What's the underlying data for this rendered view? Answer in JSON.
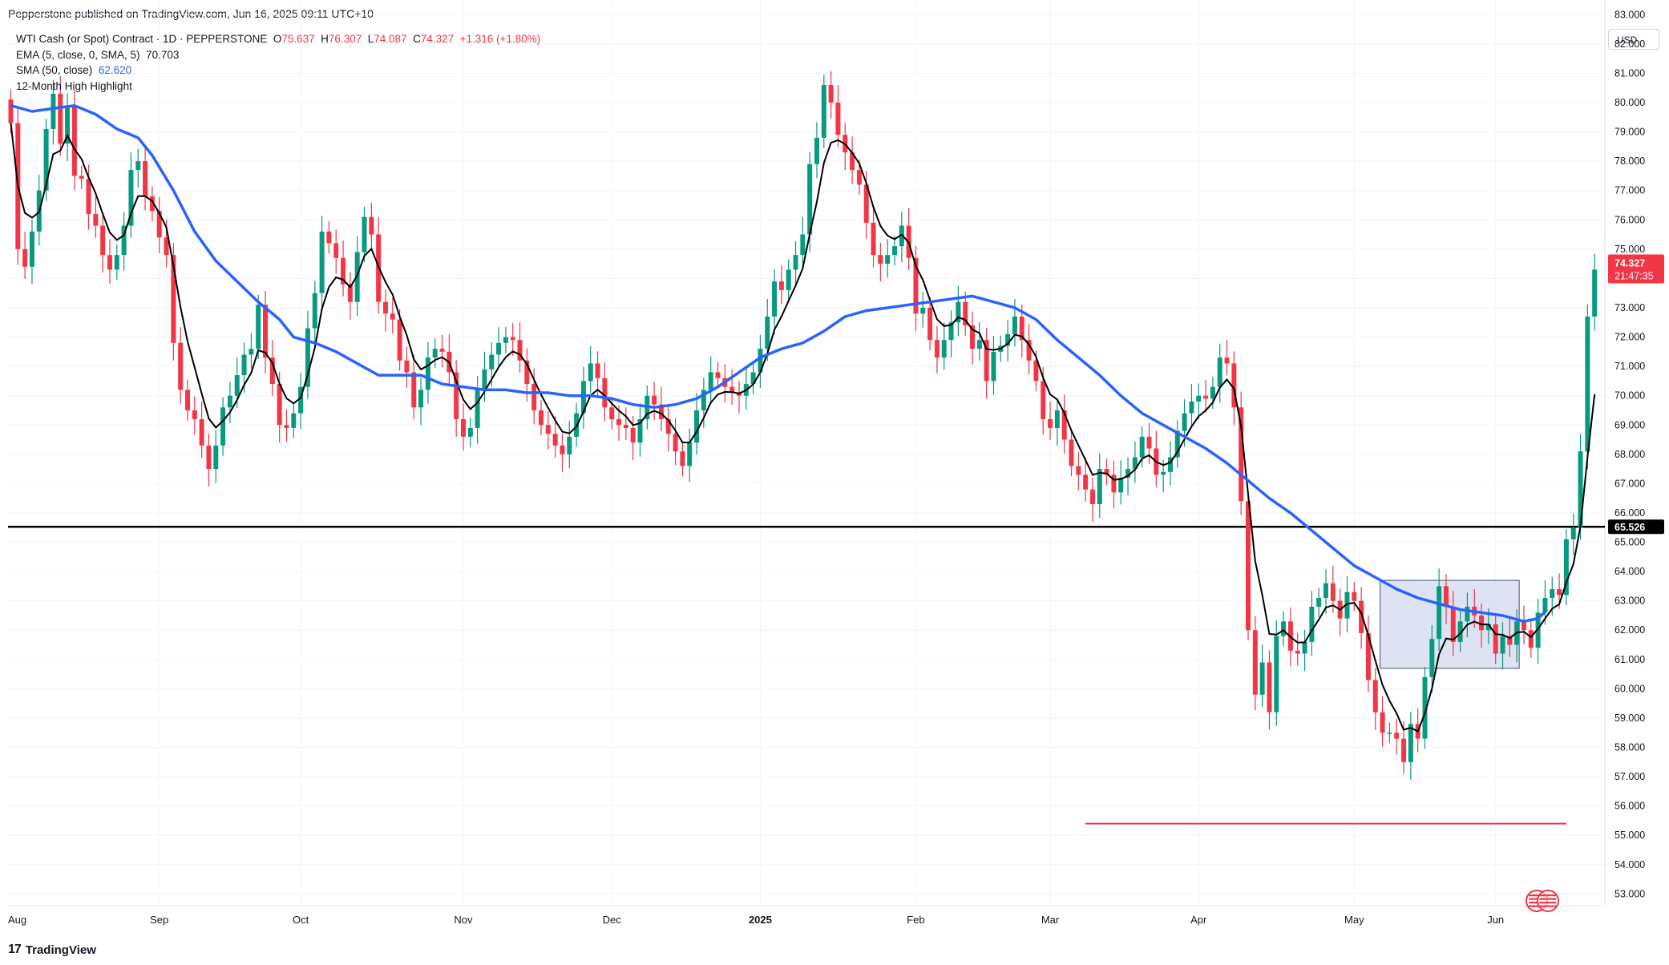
{
  "header": {
    "published": "Pepperstone published on TradingView.com, Jun 16, 2025 09:11 UTC+10"
  },
  "legend": {
    "symbol": "WTI Cash (or Spot) Contract · 1D · PEPPERSTONE",
    "o_label": "O",
    "o": "75.637",
    "h_label": "H",
    "h": "76.307",
    "l_label": "L",
    "l": "74.087",
    "c_label": "C",
    "c": "74.327",
    "change": "+1.316 (+1.80%)",
    "ema_label": "EMA (5, close, 0, SMA, 5)",
    "ema_value": "70.703",
    "sma_label": "SMA (50, close)",
    "sma_value": "62.620",
    "highlight_label": "12-Month High Highlight"
  },
  "currency": "USD",
  "footer": {
    "logo": "17",
    "brand": "TradingView"
  },
  "colors": {
    "up": "#089981",
    "down": "#f23645",
    "ema": "#000000",
    "sma": "#2962ff",
    "support": "#000000",
    "low_line": "#f23645",
    "box_fill": "#d1d9ee",
    "box_border": "#5b6b96"
  },
  "chart_data": {
    "type": "candlestick",
    "symbol": "WTI Cash (or Spot) Contract",
    "timeframe": "1D",
    "ylim": [
      52.6,
      83.5
    ],
    "y_ticks": [
      "53.000",
      "54.000",
      "55.000",
      "56.000",
      "57.000",
      "58.000",
      "59.000",
      "60.000",
      "61.000",
      "62.000",
      "63.000",
      "64.000",
      "65.000",
      "66.000",
      "67.000",
      "68.000",
      "69.000",
      "70.000",
      "71.000",
      "72.000",
      "73.000",
      "74.000",
      "75.000",
      "76.000",
      "77.000",
      "78.000",
      "79.000",
      "80.000",
      "81.000",
      "82.000",
      "83.000"
    ],
    "x_ticks": [
      {
        "label": "Aug",
        "index": -1
      },
      {
        "label": "Sep",
        "index": 21
      },
      {
        "label": "Oct",
        "index": 41
      },
      {
        "label": "Nov",
        "index": 64
      },
      {
        "label": "Dec",
        "index": 85
      },
      {
        "label": "2025",
        "index": 106,
        "bold": true
      },
      {
        "label": "Feb",
        "index": 128
      },
      {
        "label": "Mar",
        "index": 147
      },
      {
        "label": "Apr",
        "index": 168
      },
      {
        "label": "May",
        "index": 190
      },
      {
        "label": "Jun",
        "index": 210
      }
    ],
    "close": [
      79.3,
      75.0,
      74.4,
      75.6,
      77.0,
      79.1,
      80.3,
      78.6,
      79.9,
      77.5,
      77.4,
      76.2,
      75.8,
      74.8,
      74.3,
      74.8,
      75.8,
      77.7,
      78.0,
      76.8,
      76.3,
      75.4,
      74.8,
      71.8,
      70.2,
      69.5,
      69.2,
      68.3,
      67.5,
      68.3,
      69.6,
      70.0,
      70.7,
      71.4,
      71.6,
      73.1,
      71.3,
      70.4,
      69.0,
      68.9,
      69.4,
      70.3,
      72.3,
      73.5,
      75.6,
      75.2,
      74.7,
      73.8,
      73.2,
      74.9,
      76.1,
      75.5,
      73.2,
      72.8,
      72.6,
      71.2,
      70.8,
      69.6,
      70.2,
      71.3,
      71.6,
      71.5,
      70.8,
      69.2,
      68.6,
      68.9,
      70.2,
      70.9,
      71.4,
      71.8,
      72.0,
      71.9,
      71.2,
      70.4,
      69.5,
      69.0,
      68.7,
      68.3,
      68.0,
      68.6,
      69.4,
      70.5,
      71.1,
      70.6,
      69.6,
      69.2,
      69.0,
      68.9,
      68.4,
      69.2,
      70.0,
      69.7,
      69.2,
      68.7,
      68.1,
      67.6,
      68.4,
      69.5,
      70.2,
      70.8,
      70.6,
      70.3,
      70.1,
      70.0,
      70.4,
      70.8,
      71.6,
      72.7,
      73.9,
      73.6,
      74.3,
      74.8,
      75.5,
      77.9,
      78.8,
      80.6,
      80.0,
      78.9,
      78.3,
      77.7,
      77.2,
      75.9,
      74.8,
      74.5,
      74.8,
      75.1,
      75.8,
      74.7,
      72.8,
      73.0,
      71.9,
      71.3,
      71.9,
      72.5,
      73.2,
      72.4,
      71.6,
      71.9,
      70.5,
      71.5,
      71.7,
      72.1,
      72.7,
      71.9,
      71.2,
      70.5,
      69.2,
      68.9,
      69.5,
      68.5,
      67.6,
      67.3,
      66.8,
      66.3,
      67.5,
      67.3,
      66.7,
      67.2,
      67.5,
      67.9,
      68.6,
      68.2,
      67.3,
      67.4,
      67.9,
      68.8,
      69.4,
      69.8,
      70.0,
      69.9,
      70.3,
      71.3,
      71.1,
      69.6,
      66.4,
      62.0,
      59.8,
      60.9,
      59.2,
      61.8,
      62.3,
      61.3,
      61.2,
      61.6,
      62.8,
      63.1,
      63.6,
      63.0,
      62.4,
      63.3,
      63.0,
      61.9,
      60.3,
      59.2,
      58.5,
      58.5,
      58.3,
      57.5,
      58.8,
      58.3,
      60.4,
      61.7,
      63.5,
      62.8,
      61.6,
      62.3,
      62.8,
      62.5,
      62.0,
      62.2,
      61.2,
      61.8,
      61.5,
      62.3,
      62.0,
      61.4,
      62.6,
      63.1,
      63.4,
      63.2,
      65.1,
      65.5,
      68.1,
      72.7,
      74.3
    ],
    "ema_label": "EMA (5, close, 0, SMA, 5)",
    "ema_last": 70.703,
    "sma_label": "SMA (50, close)",
    "sma_last": 62.62,
    "sma": [
      [
        0,
        79.9
      ],
      [
        3,
        79.7
      ],
      [
        6,
        79.8
      ],
      [
        9,
        79.9
      ],
      [
        12,
        79.6
      ],
      [
        15,
        79.1
      ],
      [
        18,
        78.8
      ],
      [
        20,
        78.2
      ],
      [
        23,
        77.0
      ],
      [
        26,
        75.6
      ],
      [
        29,
        74.6
      ],
      [
        32,
        73.9
      ],
      [
        35,
        73.2
      ],
      [
        38,
        72.6
      ],
      [
        40,
        72.0
      ],
      [
        43,
        71.8
      ],
      [
        46,
        71.5
      ],
      [
        49,
        71.1
      ],
      [
        52,
        70.7
      ],
      [
        55,
        70.7
      ],
      [
        58,
        70.7
      ],
      [
        61,
        70.4
      ],
      [
        64,
        70.3
      ],
      [
        67,
        70.2
      ],
      [
        70,
        70.2
      ],
      [
        73,
        70.1
      ],
      [
        76,
        70.1
      ],
      [
        79,
        70.0
      ],
      [
        82,
        70.0
      ],
      [
        85,
        69.9
      ],
      [
        88,
        69.7
      ],
      [
        91,
        69.6
      ],
      [
        94,
        69.7
      ],
      [
        97,
        69.9
      ],
      [
        100,
        70.3
      ],
      [
        103,
        70.8
      ],
      [
        106,
        71.3
      ],
      [
        109,
        71.6
      ],
      [
        112,
        71.8
      ],
      [
        115,
        72.2
      ],
      [
        118,
        72.7
      ],
      [
        121,
        72.9
      ],
      [
        124,
        73.0
      ],
      [
        127,
        73.1
      ],
      [
        130,
        73.2
      ],
      [
        133,
        73.3
      ],
      [
        136,
        73.4
      ],
      [
        139,
        73.2
      ],
      [
        142,
        73.0
      ],
      [
        145,
        72.6
      ],
      [
        148,
        71.9
      ],
      [
        151,
        71.3
      ],
      [
        154,
        70.7
      ],
      [
        157,
        70.0
      ],
      [
        160,
        69.4
      ],
      [
        163,
        69.0
      ],
      [
        166,
        68.6
      ],
      [
        169,
        68.2
      ],
      [
        172,
        67.7
      ],
      [
        175,
        67.1
      ],
      [
        178,
        66.5
      ],
      [
        181,
        66.0
      ],
      [
        184,
        65.4
      ],
      [
        187,
        64.8
      ],
      [
        190,
        64.2
      ],
      [
        193,
        63.8
      ],
      [
        196,
        63.4
      ],
      [
        199,
        63.1
      ],
      [
        202,
        62.9
      ],
      [
        205,
        62.7
      ],
      [
        208,
        62.6
      ],
      [
        211,
        62.5
      ],
      [
        214,
        62.3
      ],
      [
        216,
        62.4
      ],
      [
        217,
        62.62
      ]
    ],
    "support_level": 65.526,
    "low_level": 55.4,
    "last_price": "74.327",
    "countdown": "21:47:35",
    "support_label": "65.526",
    "consolidation_box": {
      "x0": 194,
      "x1": 213,
      "y_low": 60.7,
      "y_high": 63.7
    }
  }
}
